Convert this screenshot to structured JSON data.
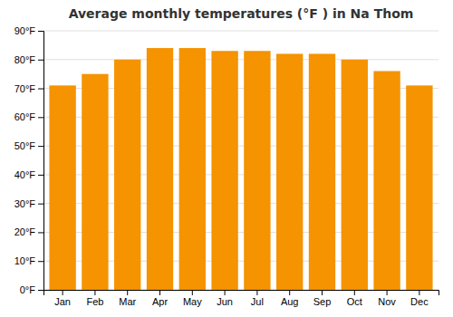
{
  "chart_data": {
    "type": "bar",
    "title": "Average monthly temperatures (°F ) in Na Thom",
    "categories": [
      "Jan",
      "Feb",
      "Mar",
      "Apr",
      "May",
      "Jun",
      "Jul",
      "Aug",
      "Sep",
      "Oct",
      "Nov",
      "Dec"
    ],
    "values": [
      71,
      75,
      80,
      84,
      84,
      83,
      83,
      82,
      82,
      80,
      76,
      71
    ],
    "color": "#F59300",
    "ylim": [
      0,
      90
    ],
    "yticks": [
      {
        "value": 0,
        "label": "0°F"
      },
      {
        "value": 10,
        "label": "10°F"
      },
      {
        "value": 20,
        "label": "20°F"
      },
      {
        "value": 30,
        "label": "30°F"
      },
      {
        "value": 40,
        "label": "40°F"
      },
      {
        "value": 50,
        "label": "50°F"
      },
      {
        "value": 60,
        "label": "60°F"
      },
      {
        "value": 70,
        "label": "70°F"
      },
      {
        "value": 80,
        "label": "80°F"
      },
      {
        "value": 90,
        "label": "90°F"
      }
    ],
    "grid": true
  }
}
